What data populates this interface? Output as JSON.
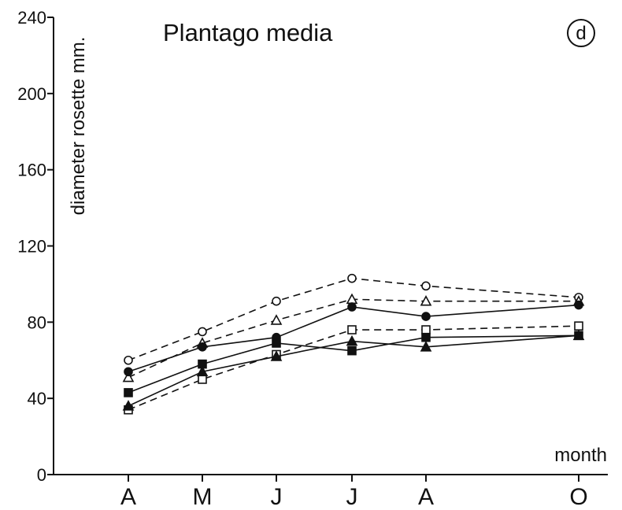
{
  "chart_data": {
    "type": "line",
    "title": "Plantago media",
    "panel_label": "d",
    "ylabel": "diameter rosette mm.",
    "xlabel": "month",
    "ylim": [
      0,
      240
    ],
    "yticks": [
      0,
      40,
      80,
      120,
      160,
      200,
      240
    ],
    "categories": [
      "A",
      "M",
      "J",
      "J",
      "A",
      "O"
    ],
    "grid": false,
    "series": [
      {
        "marker": "open-circle",
        "line": "dashed",
        "points": [
          [
            0,
            60
          ],
          [
            1,
            75
          ],
          [
            2,
            91
          ],
          [
            3,
            103
          ],
          [
            4,
            99
          ],
          [
            5,
            93
          ]
        ]
      },
      {
        "marker": "open-triangle",
        "line": "dashed",
        "points": [
          [
            0,
            51
          ],
          [
            1,
            69
          ],
          [
            2,
            81
          ],
          [
            3,
            92
          ],
          [
            4,
            91
          ],
          [
            5,
            91
          ]
        ]
      },
      {
        "marker": "filled-circle",
        "line": "solid",
        "points": [
          [
            0,
            54
          ],
          [
            1,
            67
          ],
          [
            2,
            72
          ],
          [
            3,
            88
          ],
          [
            4,
            83
          ],
          [
            5,
            89
          ]
        ]
      },
      {
        "marker": "open-square",
        "line": "dashed",
        "points": [
          [
            0,
            34
          ],
          [
            1,
            50
          ],
          [
            2,
            63
          ],
          [
            3,
            76
          ],
          [
            4,
            76
          ],
          [
            5,
            78
          ]
        ]
      },
      {
        "marker": "filled-square",
        "line": "solid",
        "points": [
          [
            0,
            43
          ],
          [
            1,
            58
          ],
          [
            2,
            69
          ],
          [
            3,
            65
          ],
          [
            4,
            72
          ],
          [
            5,
            73
          ]
        ]
      },
      {
        "marker": "filled-triangle",
        "line": "solid",
        "points": [
          [
            0,
            36
          ],
          [
            1,
            54
          ],
          [
            2,
            62
          ],
          [
            3,
            70
          ],
          [
            4,
            67
          ],
          [
            5,
            73
          ]
        ]
      }
    ]
  }
}
